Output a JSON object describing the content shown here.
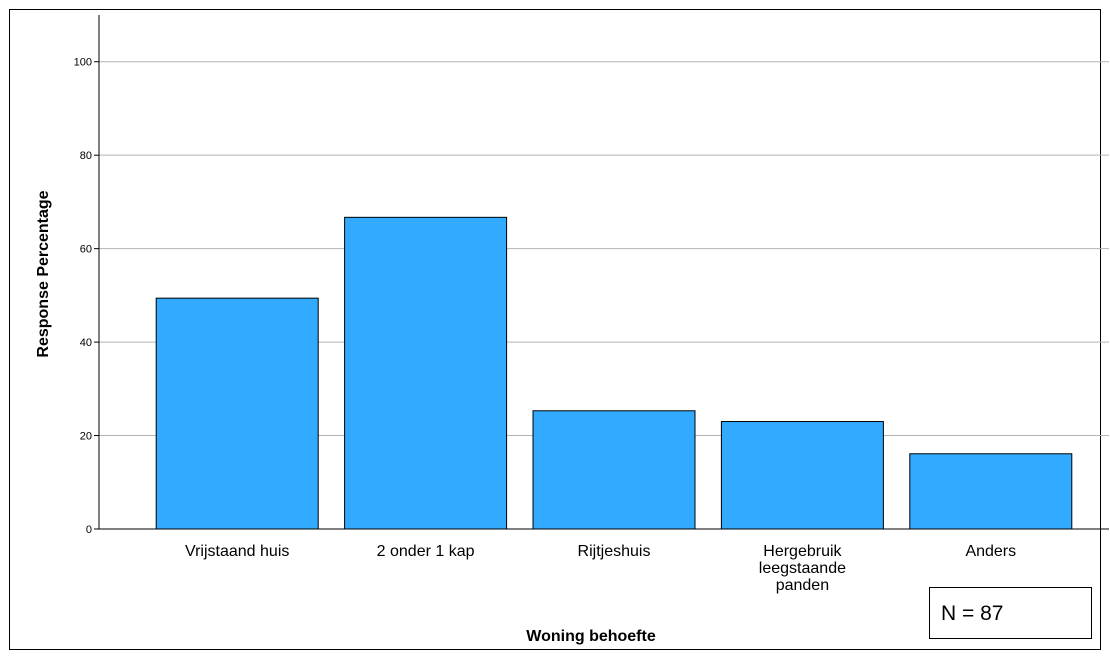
{
  "chart_data": {
    "type": "bar",
    "categories": [
      "Vrijstaand huis",
      "2 onder 1 kap",
      "Rijtjeshuis",
      "Hergebruik leegstaande panden",
      "Anders"
    ],
    "category_lines": [
      [
        "Vrijstaand huis"
      ],
      [
        "2 onder 1 kap"
      ],
      [
        "Rijtjeshuis"
      ],
      [
        "Hergebruik",
        "leegstaande",
        "panden"
      ],
      [
        "Anders"
      ]
    ],
    "values": [
      49.4,
      66.7,
      25.3,
      23.0,
      16.1
    ],
    "xlabel": "Woning behoefte",
    "ylabel": "Response Percentage",
    "ylim": [
      0,
      110
    ],
    "yticks": [
      0,
      20,
      40,
      60,
      80,
      100
    ],
    "grid": true,
    "bar_color": "#31aaff",
    "annotation": "N = 87"
  }
}
